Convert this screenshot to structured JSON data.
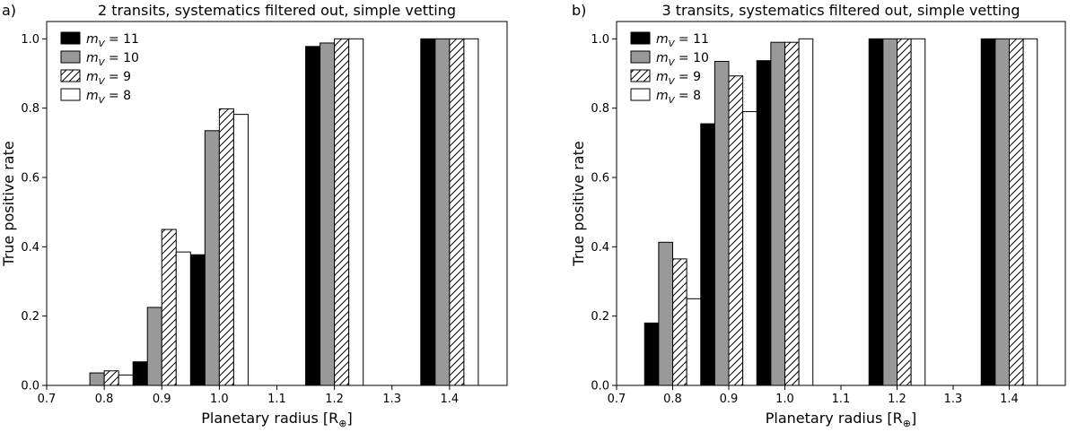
{
  "chart_data": [
    {
      "type": "bar",
      "panel_label": "a)",
      "title": "2 transits, systematics filtered out, simple vetting",
      "xlabel": "Planetary radius [R⊕]",
      "ylabel": "True positive rate",
      "xlim": [
        0.7,
        1.5
      ],
      "ylim": [
        0.0,
        1.05
      ],
      "xticks": [
        "0.7",
        "0.8",
        "0.9",
        "1.0",
        "1.1",
        "1.2",
        "1.3",
        "1.4"
      ],
      "yticks": [
        "0.0",
        "0.2",
        "0.4",
        "0.6",
        "0.8",
        "1.0"
      ],
      "x": [
        0.8,
        0.9,
        1.0,
        1.2,
        1.4
      ],
      "legend_position": "top-left",
      "grid": false,
      "series": [
        {
          "name": "m_V = 11",
          "style": "black",
          "values": [
            0.0,
            0.068,
            0.377,
            0.978,
            1.0
          ]
        },
        {
          "name": "m_V = 10",
          "style": "gray",
          "values": [
            0.036,
            0.225,
            0.735,
            0.988,
            1.0
          ]
        },
        {
          "name": "m_V = 9",
          "style": "hatched",
          "values": [
            0.042,
            0.45,
            0.798,
            1.0,
            1.0
          ]
        },
        {
          "name": "m_V = 8",
          "style": "white",
          "values": [
            0.03,
            0.385,
            0.782,
            1.0,
            1.0
          ]
        }
      ]
    },
    {
      "type": "bar",
      "panel_label": "b)",
      "title": "3 transits, systematics filtered out, simple vetting",
      "xlabel": "Planetary radius [R⊕]",
      "ylabel": "True positive rate",
      "xlim": [
        0.7,
        1.5
      ],
      "ylim": [
        0.0,
        1.05
      ],
      "xticks": [
        "0.7",
        "0.8",
        "0.9",
        "1.0",
        "1.1",
        "1.2",
        "1.3",
        "1.4"
      ],
      "yticks": [
        "0.0",
        "0.2",
        "0.4",
        "0.6",
        "0.8",
        "1.0"
      ],
      "x": [
        0.8,
        0.9,
        1.0,
        1.2,
        1.4
      ],
      "legend_position": "top-left",
      "grid": false,
      "series": [
        {
          "name": "m_V = 11",
          "style": "black",
          "values": [
            0.18,
            0.755,
            0.937,
            1.0,
            1.0
          ]
        },
        {
          "name": "m_V = 10",
          "style": "gray",
          "values": [
            0.413,
            0.935,
            0.99,
            1.0,
            1.0
          ]
        },
        {
          "name": "m_V = 9",
          "style": "hatched",
          "values": [
            0.365,
            0.893,
            0.99,
            1.0,
            1.0
          ]
        },
        {
          "name": "m_V = 8",
          "style": "white",
          "values": [
            0.25,
            0.79,
            1.0,
            1.0,
            1.0
          ]
        }
      ]
    }
  ],
  "colors": {
    "black": "#000000",
    "gray": "#999999",
    "white": "#ffffff",
    "edge": "#000000"
  }
}
